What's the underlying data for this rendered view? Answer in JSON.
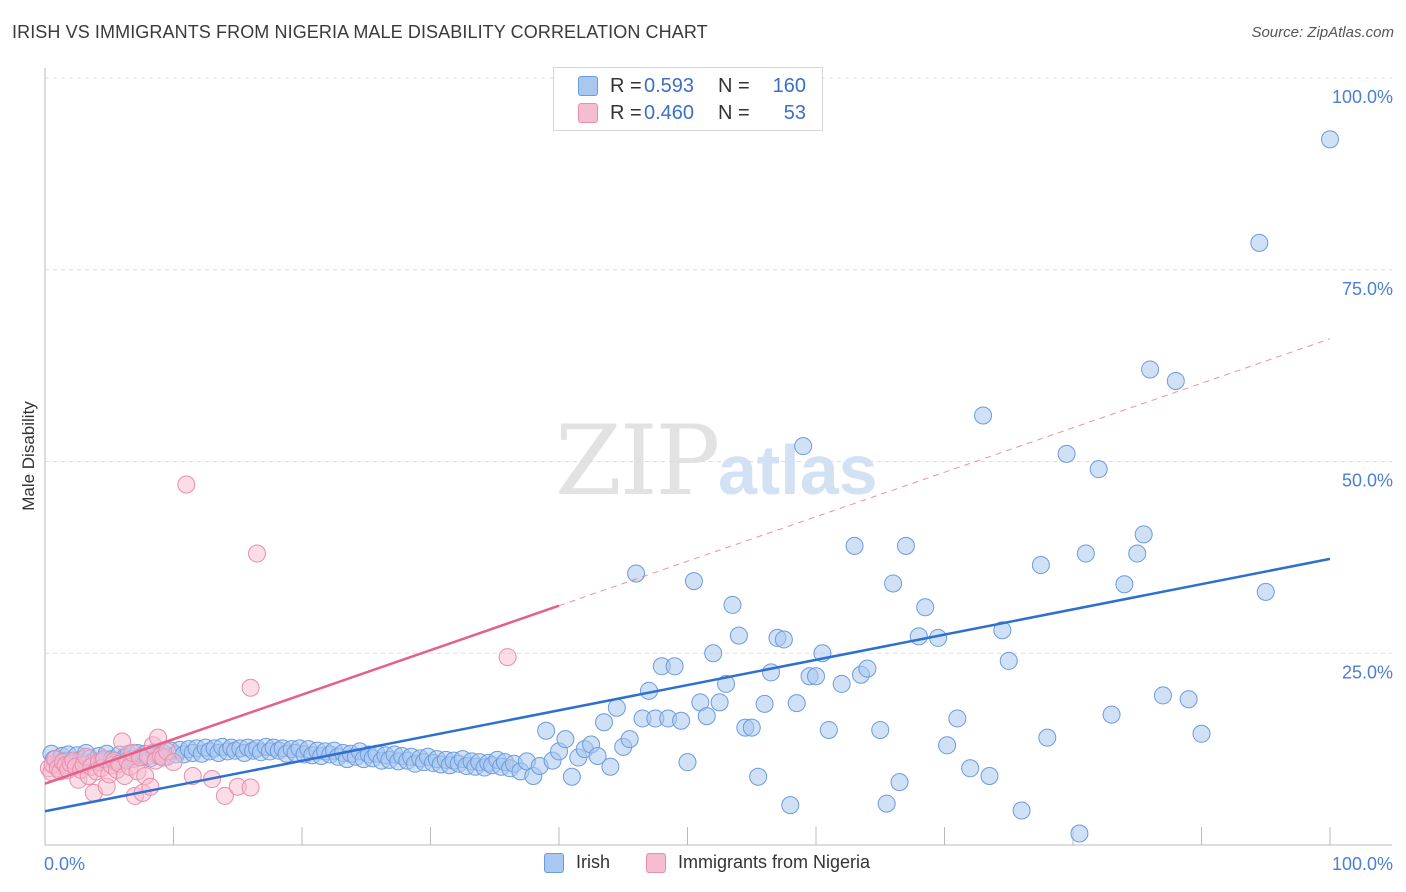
{
  "title": "IRISH VS IMMIGRANTS FROM NIGERIA MALE DISABILITY CORRELATION CHART",
  "source": "Source: ZipAtlas.com",
  "watermark": {
    "zip": "ZIP",
    "atlas": "atlas"
  },
  "colors": {
    "irish_fill": "#a9c8ef",
    "irish_stroke": "#6b9be0",
    "irish_line": "#2e6fd0",
    "nigeria_fill": "#f6bcd0",
    "nigeria_stroke": "#ea8cab",
    "nigeria_line": "#e4608a",
    "tick": "#4a7fd4",
    "grid": "#dddddd"
  },
  "legend": {
    "rows": [
      {
        "series": "irish",
        "r_label": "R =",
        "r_value": "0.593",
        "n_label": "N =",
        "n_value": "160"
      },
      {
        "series": "nigeria",
        "r_label": "R =",
        "r_value": "0.460",
        "n_label": "N =",
        "n_value": "53"
      }
    ]
  },
  "bottom_legend": {
    "irish": "Irish",
    "nigeria": "Immigrants from Nigeria"
  },
  "chart_data": {
    "type": "scatter",
    "title": "IRISH VS IMMIGRANTS FROM NIGERIA MALE DISABILITY CORRELATION CHART",
    "xlabel": "",
    "ylabel": "Male Disability",
    "xlim": [
      0,
      100
    ],
    "ylim": [
      0,
      100
    ],
    "x_tick_labels": {
      "left": "0.0%",
      "right": "100.0%"
    },
    "y_ticks": [
      25,
      50,
      75,
      100
    ],
    "y_tick_labels": [
      "25.0%",
      "50.0%",
      "75.0%",
      "100.0%"
    ],
    "grid": true,
    "series": [
      {
        "name": "Irish",
        "r": 0.593,
        "n": 160,
        "trend": {
          "x0": 0,
          "y0": 4.4,
          "x1": 100,
          "y1": 37.3,
          "dashed_from": null
        },
        "points": [
          [
            0.5,
            11.9
          ],
          [
            0.7,
            11.2
          ],
          [
            1.0,
            10.5
          ],
          [
            1.3,
            11.6
          ],
          [
            1.5,
            11.0
          ],
          [
            1.8,
            11.8
          ],
          [
            2.2,
            10.8
          ],
          [
            2.5,
            11.7
          ],
          [
            2.8,
            11.1
          ],
          [
            3.2,
            12.0
          ],
          [
            3.5,
            11.3
          ],
          [
            3.8,
            10.9
          ],
          [
            4.2,
            11.6
          ],
          [
            4.5,
            11.0
          ],
          [
            4.8,
            11.9
          ],
          [
            5.2,
            11.2
          ],
          [
            5.5,
            10.7
          ],
          [
            5.8,
            11.8
          ],
          [
            6.2,
            11.4
          ],
          [
            6.5,
            11.9
          ],
          [
            6.8,
            11.2
          ],
          [
            7.2,
            12.0
          ],
          [
            7.5,
            11.5
          ],
          [
            7.8,
            11.9
          ],
          [
            8.2,
            11.3
          ],
          [
            8.5,
            12.1
          ],
          [
            8.8,
            11.6
          ],
          [
            9.2,
            12.0
          ],
          [
            9.5,
            11.5
          ],
          [
            9.8,
            12.3
          ],
          [
            10.2,
            11.8
          ],
          [
            10.5,
            12.4
          ],
          [
            10.8,
            11.8
          ],
          [
            11.2,
            12.5
          ],
          [
            11.5,
            12.0
          ],
          [
            11.8,
            12.6
          ],
          [
            12.2,
            11.9
          ],
          [
            12.5,
            12.7
          ],
          [
            12.8,
            12.2
          ],
          [
            13.2,
            12.6
          ],
          [
            13.5,
            12.0
          ],
          [
            13.8,
            12.8
          ],
          [
            14.2,
            12.2
          ],
          [
            14.5,
            12.7
          ],
          [
            14.8,
            12.3
          ],
          [
            15.2,
            12.6
          ],
          [
            15.5,
            12.0
          ],
          [
            15.8,
            12.7
          ],
          [
            16.2,
            12.3
          ],
          [
            16.5,
            12.6
          ],
          [
            16.8,
            12.1
          ],
          [
            17.2,
            12.8
          ],
          [
            17.5,
            12.2
          ],
          [
            17.8,
            12.7
          ],
          [
            18.2,
            12.3
          ],
          [
            18.5,
            12.6
          ],
          [
            18.8,
            11.9
          ],
          [
            19.2,
            12.5
          ],
          [
            19.5,
            12.0
          ],
          [
            19.8,
            12.6
          ],
          [
            20.2,
            11.8
          ],
          [
            20.5,
            12.5
          ],
          [
            20.8,
            11.7
          ],
          [
            21.2,
            12.3
          ],
          [
            21.5,
            11.6
          ],
          [
            21.8,
            12.2
          ],
          [
            22.2,
            11.8
          ],
          [
            22.5,
            12.3
          ],
          [
            22.8,
            11.5
          ],
          [
            23.2,
            12.0
          ],
          [
            23.5,
            11.2
          ],
          [
            23.8,
            11.9
          ],
          [
            24.2,
            11.5
          ],
          [
            24.5,
            12.2
          ],
          [
            24.8,
            11.2
          ],
          [
            25.2,
            11.8
          ],
          [
            25.5,
            11.3
          ],
          [
            25.8,
            11.9
          ],
          [
            26.2,
            11.0
          ],
          [
            26.5,
            11.7
          ],
          [
            26.8,
            11.1
          ],
          [
            27.2,
            11.8
          ],
          [
            27.5,
            10.9
          ],
          [
            27.8,
            11.6
          ],
          [
            28.2,
            11.0
          ],
          [
            28.5,
            11.5
          ],
          [
            28.8,
            10.6
          ],
          [
            29.2,
            11.3
          ],
          [
            29.5,
            10.8
          ],
          [
            29.8,
            11.5
          ],
          [
            30.2,
            10.7
          ],
          [
            30.5,
            11.2
          ],
          [
            30.8,
            10.5
          ],
          [
            31.2,
            11.1
          ],
          [
            31.5,
            10.4
          ],
          [
            31.8,
            11.0
          ],
          [
            32.2,
            10.6
          ],
          [
            32.5,
            11.2
          ],
          [
            32.8,
            10.3
          ],
          [
            33.2,
            10.9
          ],
          [
            33.5,
            10.2
          ],
          [
            33.8,
            10.8
          ],
          [
            34.2,
            10.1
          ],
          [
            34.5,
            10.7
          ],
          [
            34.8,
            10.4
          ],
          [
            35.2,
            11.1
          ],
          [
            35.5,
            10.2
          ],
          [
            35.8,
            10.8
          ],
          [
            36.2,
            10.0
          ],
          [
            36.5,
            10.6
          ],
          [
            37.0,
            9.6
          ],
          [
            37.5,
            10.9
          ],
          [
            38.0,
            9.0
          ],
          [
            38.5,
            10.3
          ],
          [
            39.0,
            14.9
          ],
          [
            39.5,
            11.0
          ],
          [
            40.0,
            12.2
          ],
          [
            40.5,
            13.8
          ],
          [
            41.0,
            8.9
          ],
          [
            41.5,
            11.4
          ],
          [
            42.0,
            12.5
          ],
          [
            42.5,
            13.1
          ],
          [
            43.0,
            11.6
          ],
          [
            43.5,
            16.0
          ],
          [
            44.0,
            10.2
          ],
          [
            44.5,
            17.9
          ],
          [
            45.0,
            12.8
          ],
          [
            45.5,
            13.8
          ],
          [
            46.0,
            35.4
          ],
          [
            46.5,
            16.5
          ],
          [
            47.0,
            20.1
          ],
          [
            47.5,
            16.5
          ],
          [
            48.0,
            23.3
          ],
          [
            48.5,
            16.5
          ],
          [
            49.0,
            23.3
          ],
          [
            49.5,
            16.2
          ],
          [
            50.0,
            10.8
          ],
          [
            50.5,
            34.4
          ],
          [
            51.0,
            18.6
          ],
          [
            51.5,
            16.8
          ],
          [
            52.0,
            25.0
          ],
          [
            52.5,
            18.6
          ],
          [
            53.0,
            21.0
          ],
          [
            53.5,
            31.3
          ],
          [
            54.0,
            27.3
          ],
          [
            54.5,
            15.3
          ],
          [
            55.0,
            15.3
          ],
          [
            55.5,
            8.9
          ],
          [
            56.0,
            18.4
          ],
          [
            56.5,
            22.5
          ],
          [
            57.0,
            27.0
          ],
          [
            57.5,
            26.8
          ],
          [
            58.0,
            5.2
          ],
          [
            58.5,
            18.5
          ],
          [
            59.0,
            52.0
          ],
          [
            59.5,
            22.0
          ],
          [
            60.0,
            22.0
          ],
          [
            60.5,
            25.0
          ],
          [
            61.0,
            15.0
          ],
          [
            62.0,
            21.0
          ],
          [
            63.0,
            39.0
          ],
          [
            63.5,
            22.2
          ],
          [
            64.0,
            23.0
          ],
          [
            65.0,
            15.0
          ],
          [
            65.5,
            5.4
          ],
          [
            66.0,
            34.1
          ],
          [
            66.5,
            8.2
          ],
          [
            67.0,
            39.0
          ],
          [
            68.0,
            27.2
          ],
          [
            68.5,
            31.0
          ]
        ]
      },
      {
        "name": "Immigrants from Nigeria",
        "r": 0.46,
        "n": 53,
        "trend": {
          "x0": 0,
          "y0": 8.0,
          "x1": 100,
          "y1": 66.0,
          "dashed_from": 40
        },
        "points": [
          [
            0.3,
            10.0
          ],
          [
            0.5,
            9.5
          ],
          [
            0.6,
            10.5
          ],
          [
            0.8,
            11.2
          ],
          [
            1.0,
            10.0
          ],
          [
            1.2,
            9.6
          ],
          [
            1.4,
            10.8
          ],
          [
            1.6,
            10.4
          ],
          [
            1.8,
            9.8
          ],
          [
            2.0,
            10.6
          ],
          [
            2.2,
            11.0
          ],
          [
            2.4,
            10.2
          ],
          [
            2.6,
            8.5
          ],
          [
            2.8,
            9.8
          ],
          [
            3.0,
            10.5
          ],
          [
            3.2,
            11.5
          ],
          [
            3.4,
            9.0
          ],
          [
            3.6,
            10.2
          ],
          [
            3.8,
            6.8
          ],
          [
            4.0,
            9.6
          ],
          [
            4.2,
            10.8
          ],
          [
            4.4,
            10.0
          ],
          [
            4.6,
            11.2
          ],
          [
            4.8,
            7.6
          ],
          [
            5.0,
            9.2
          ],
          [
            5.2,
            10.4
          ],
          [
            5.4,
            11.0
          ],
          [
            5.6,
            9.8
          ],
          [
            5.8,
            10.6
          ],
          [
            6.0,
            13.5
          ],
          [
            6.2,
            9.0
          ],
          [
            6.4,
            11.0
          ],
          [
            6.6,
            10.2
          ],
          [
            6.8,
            12.0
          ],
          [
            7.0,
            6.4
          ],
          [
            7.2,
            9.6
          ],
          [
            7.4,
            11.4
          ],
          [
            7.6,
            6.8
          ],
          [
            7.8,
            9.0
          ],
          [
            8.0,
            11.6
          ],
          [
            8.2,
            7.6
          ],
          [
            8.4,
            13.0
          ],
          [
            8.6,
            11.0
          ],
          [
            8.8,
            14.0
          ],
          [
            9.0,
            11.6
          ],
          [
            9.2,
            11.4
          ],
          [
            9.5,
            12.2
          ],
          [
            10.0,
            10.8
          ],
          [
            11.5,
            9.0
          ],
          [
            13.0,
            8.6
          ],
          [
            14.0,
            6.4
          ],
          [
            15.0,
            7.6
          ],
          [
            16.0,
            7.5
          ]
        ]
      }
    ]
  }
}
